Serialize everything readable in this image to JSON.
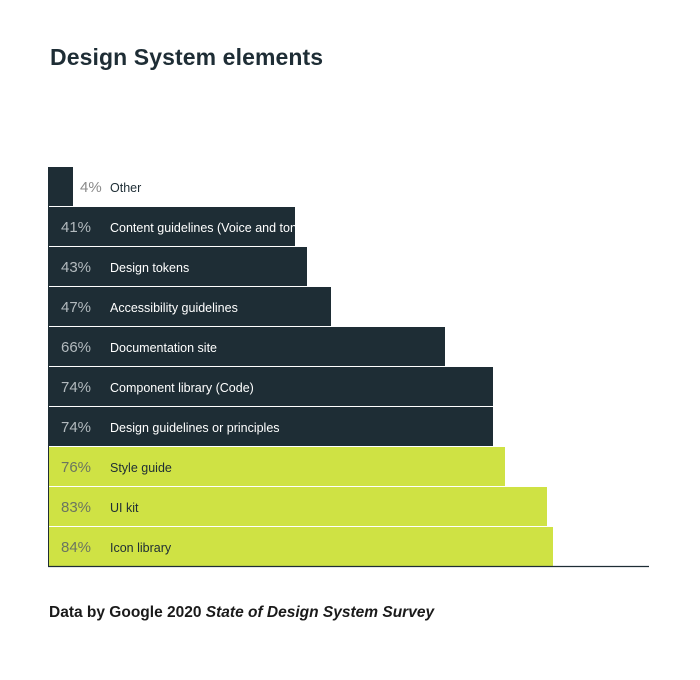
{
  "title": "Design System elements",
  "colors": {
    "dark": "#1e2d35",
    "accent": "#cfe244",
    "pct_on_dark": "#b3babe",
    "pct_on_light": "#6b7560",
    "pct_outside": "#8a8a8a",
    "label_on_dark": "#ffffff",
    "label_on_light": "#1e2d35",
    "baseline": "#1e2d35"
  },
  "chart_data": {
    "type": "bar",
    "orientation": "horizontal",
    "title": "Design System elements",
    "xlim": [
      0,
      100
    ],
    "unit": "%",
    "grid": false,
    "legend": "none",
    "categories": [
      "Other",
      "Content guidelines (Voice and tone)",
      "Design tokens",
      "Accessibility guidelines",
      "Documentation site",
      "Component library (Code)",
      "Design guidelines or principles",
      "Style guide",
      "UI kit",
      "Icon library"
    ],
    "values": [
      4,
      41,
      43,
      47,
      66,
      74,
      74,
      76,
      83,
      84
    ],
    "value_labels": [
      "4%",
      "41%",
      "43%",
      "47%",
      "66%",
      "74%",
      "74%",
      "76%",
      "83%",
      "84%"
    ],
    "highlight": [
      false,
      false,
      false,
      false,
      false,
      false,
      false,
      true,
      true,
      true
    ]
  },
  "footer": {
    "prefix": "Data by Google 2020 ",
    "survey": "State of Design System Survey"
  }
}
